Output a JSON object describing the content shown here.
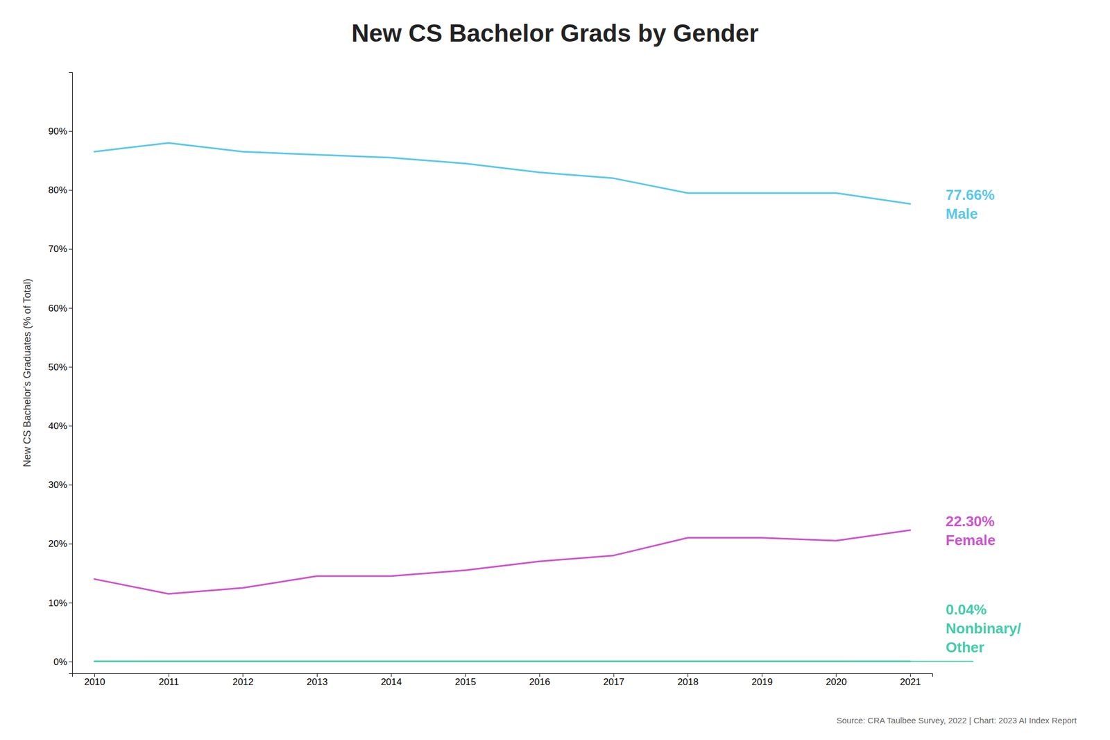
{
  "chart_data": {
    "type": "line",
    "title": "New CS Bachelor Grads by Gender",
    "ylabel": "New CS Bachelor's Graduates (% of Total)",
    "source": "Source: CRA Taulbee Survey, 2022 | Chart: 2023 AI Index Report",
    "x": [
      2010,
      2011,
      2012,
      2013,
      2014,
      2015,
      2016,
      2017,
      2018,
      2019,
      2020,
      2021
    ],
    "xlim": [
      2009.7,
      2021.3
    ],
    "xticks": [
      2010,
      2011,
      2012,
      2013,
      2014,
      2015,
      2016,
      2017,
      2018,
      2019,
      2020,
      2021
    ],
    "ylim": [
      -2,
      100
    ],
    "yticks": [
      {
        "value": 0,
        "label": "0%"
      },
      {
        "value": 10,
        "label": "10%"
      },
      {
        "value": 20,
        "label": "20%"
      },
      {
        "value": 30,
        "label": "30%"
      },
      {
        "value": 40,
        "label": "40%"
      },
      {
        "value": 50,
        "label": "50%"
      },
      {
        "value": 60,
        "label": "60%"
      },
      {
        "value": 70,
        "label": "70%"
      },
      {
        "value": 80,
        "label": "80%"
      },
      {
        "value": 90,
        "label": "90%"
      }
    ],
    "series": [
      {
        "name": "Male",
        "color": "#5bc8e8",
        "values": [
          86.5,
          88.0,
          86.5,
          86.0,
          85.5,
          84.5,
          83.0,
          82.0,
          79.5,
          79.5,
          79.5,
          77.66
        ],
        "value_labels": [
          null,
          null,
          null,
          null,
          null,
          null,
          null,
          null,
          null,
          null,
          null,
          "77.66%"
        ]
      },
      {
        "name": "Female",
        "color": "#cc55cc",
        "values": [
          14.0,
          11.5,
          12.5,
          14.5,
          14.5,
          15.5,
          17.0,
          18.0,
          21.0,
          21.0,
          20.5,
          22.3
        ],
        "value_labels": [
          null,
          null,
          null,
          null,
          null,
          null,
          null,
          null,
          null,
          null,
          null,
          "22.30%"
        ]
      },
      {
        "name": "Nonbinary/Other",
        "color": "#44ccaa",
        "values": [
          0.04,
          0.04,
          0.04,
          0.04,
          0.04,
          0.04,
          0.04,
          0.04,
          0.04,
          0.04,
          0.04,
          0.04
        ],
        "value_labels": [
          null,
          null,
          null,
          null,
          null,
          null,
          null,
          null,
          null,
          null,
          null,
          "0.04%"
        ]
      }
    ]
  }
}
